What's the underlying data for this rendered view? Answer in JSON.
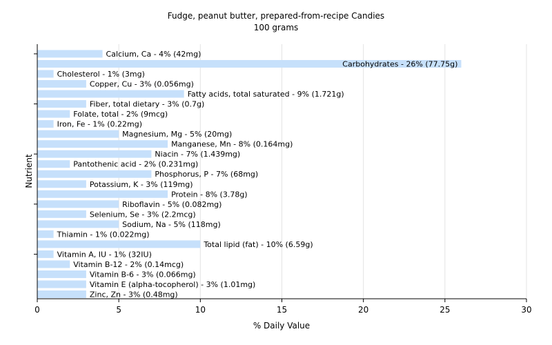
{
  "chart_data": {
    "type": "bar",
    "orientation": "horizontal",
    "title": "Fudge, peanut butter, prepared-from-recipe Candies",
    "subtitle": "100 grams",
    "xlabel": "% Daily Value",
    "ylabel": "Nutrient",
    "xlim": [
      0,
      30
    ],
    "xticks": [
      0,
      5,
      10,
      15,
      20,
      25,
      30
    ],
    "grid": true,
    "colors": {
      "bar": "#c6e0fb",
      "grid": "#e3e3e3",
      "axis": "#000000"
    },
    "bars": [
      {
        "nutrient": "Calcium, Ca",
        "value": 4,
        "label": "Calcium, Ca - 4% (42mg)"
      },
      {
        "nutrient": "Carbohydrates",
        "value": 26,
        "label": "Carbohydrates - 26% (77.75g)"
      },
      {
        "nutrient": "Cholesterol",
        "value": 1,
        "label": "Cholesterol - 1% (3mg)"
      },
      {
        "nutrient": "Copper, Cu",
        "value": 3,
        "label": "Copper, Cu - 3% (0.056mg)"
      },
      {
        "nutrient": "Fatty acids, total saturated",
        "value": 9,
        "label": "Fatty acids, total saturated - 9% (1.721g)"
      },
      {
        "nutrient": "Fiber, total dietary",
        "value": 3,
        "label": "Fiber, total dietary - 3% (0.7g)"
      },
      {
        "nutrient": "Folate, total",
        "value": 2,
        "label": "Folate, total - 2% (9mcg)"
      },
      {
        "nutrient": "Iron, Fe",
        "value": 1,
        "label": "Iron, Fe - 1% (0.22mg)"
      },
      {
        "nutrient": "Magnesium, Mg",
        "value": 5,
        "label": "Magnesium, Mg - 5% (20mg)"
      },
      {
        "nutrient": "Manganese, Mn",
        "value": 8,
        "label": "Manganese, Mn - 8% (0.164mg)"
      },
      {
        "nutrient": "Niacin",
        "value": 7,
        "label": "Niacin - 7% (1.439mg)"
      },
      {
        "nutrient": "Pantothenic acid",
        "value": 2,
        "label": "Pantothenic acid - 2% (0.231mg)"
      },
      {
        "nutrient": "Phosphorus, P",
        "value": 7,
        "label": "Phosphorus, P - 7% (68mg)"
      },
      {
        "nutrient": "Potassium, K",
        "value": 3,
        "label": "Potassium, K - 3% (119mg)"
      },
      {
        "nutrient": "Protein",
        "value": 8,
        "label": "Protein - 8% (3.78g)"
      },
      {
        "nutrient": "Riboflavin",
        "value": 5,
        "label": "Riboflavin - 5% (0.082mg)"
      },
      {
        "nutrient": "Selenium, Se",
        "value": 3,
        "label": "Selenium, Se - 3% (2.2mcg)"
      },
      {
        "nutrient": "Sodium, Na",
        "value": 5,
        "label": "Sodium, Na - 5% (118mg)"
      },
      {
        "nutrient": "Thiamin",
        "value": 1,
        "label": "Thiamin - 1% (0.022mg)"
      },
      {
        "nutrient": "Total lipid (fat)",
        "value": 10,
        "label": "Total lipid (fat) - 10% (6.59g)"
      },
      {
        "nutrient": "Vitamin A, IU",
        "value": 1,
        "label": "Vitamin A, IU - 1% (32IU)"
      },
      {
        "nutrient": "Vitamin B-12",
        "value": 2,
        "label": "Vitamin B-12 - 2% (0.14mcg)"
      },
      {
        "nutrient": "Vitamin B-6",
        "value": 3,
        "label": "Vitamin B-6 - 3% (0.066mg)"
      },
      {
        "nutrient": "Vitamin E (alpha-tocopherol)",
        "value": 3,
        "label": "Vitamin E (alpha-tocopherol) - 3% (1.01mg)"
      },
      {
        "nutrient": "Zinc, Zn",
        "value": 3,
        "label": "Zinc, Zn - 3% (0.48mg)"
      }
    ]
  }
}
